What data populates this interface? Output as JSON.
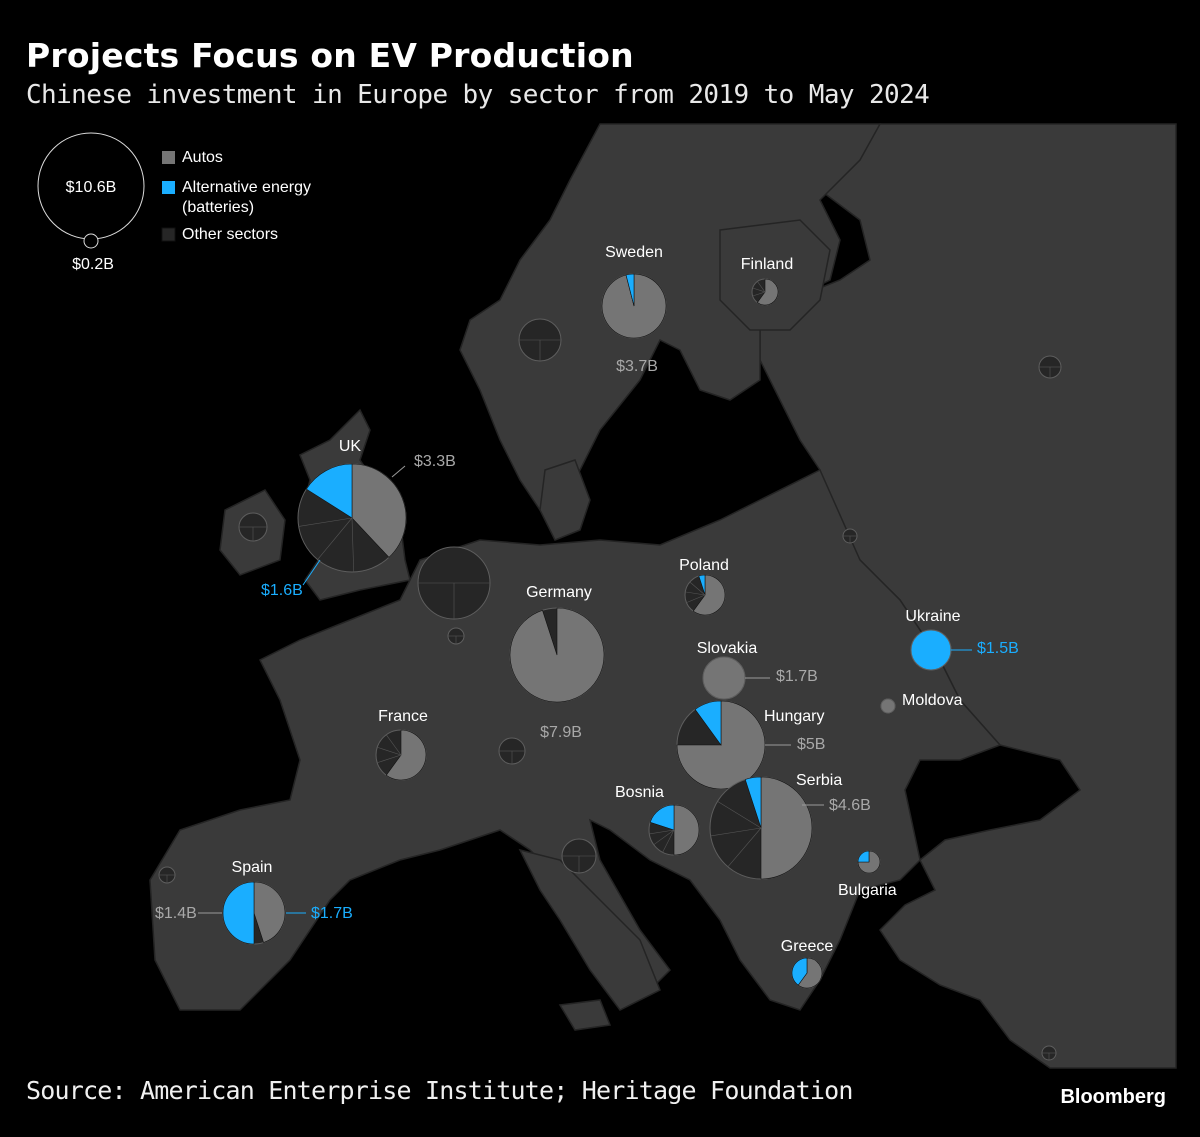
{
  "title": "Projects Focus on EV Production",
  "subtitle": "Chinese investment in Europe by sector from 2019 to May 2024",
  "source": "Source: American Enterprise Institute; Heritage Foundation",
  "brand": "Bloomberg",
  "colors": {
    "autos": "#757575",
    "battery": "#1aaeff",
    "other": "#262626",
    "land": "#3a3a3a",
    "sea": "#000000",
    "border": "#232323"
  },
  "legend": {
    "size_large": "$10.6B",
    "size_small": "$0.2B",
    "items": [
      {
        "label": "Autos",
        "color": "#757575"
      },
      {
        "label": "Alternative energy",
        "label2": "(batteries)",
        "color": "#1aaeff"
      },
      {
        "label": "Other sectors",
        "color": "#262626"
      }
    ]
  },
  "countries": [
    {
      "name": "Sweden",
      "value_label": "$3.7B",
      "shares": [
        0.96,
        0.04,
        0.0
      ]
    },
    {
      "name": "Finland",
      "value_label": "",
      "shares": [
        0.6,
        0.0,
        0.4
      ]
    },
    {
      "name": "UK",
      "value_label": "$3.3B",
      "battery_label": "$1.6B",
      "shares": [
        0.38,
        0.16,
        0.46
      ]
    },
    {
      "name": "Poland",
      "value_label": "",
      "shares": [
        0.6,
        0.05,
        0.35
      ]
    },
    {
      "name": "Germany",
      "value_label": "$7.9B",
      "shares": [
        0.95,
        0.0,
        0.05
      ]
    },
    {
      "name": "Slovakia",
      "value_label": "$1.7B",
      "shares": [
        1.0,
        0.0,
        0.0
      ]
    },
    {
      "name": "Ukraine",
      "value_label": "",
      "battery_label": "$1.5B",
      "shares": [
        0.0,
        1.0,
        0.0
      ]
    },
    {
      "name": "Moldova",
      "value_label": "",
      "shares": [
        1.0,
        0.0,
        0.0
      ]
    },
    {
      "name": "France",
      "value_label": "",
      "shares": [
        0.6,
        0.0,
        0.4
      ]
    },
    {
      "name": "Hungary",
      "value_label": "$5B",
      "shares": [
        0.75,
        0.1,
        0.15
      ]
    },
    {
      "name": "Serbia",
      "value_label": "$4.6B",
      "shares": [
        0.5,
        0.05,
        0.45
      ]
    },
    {
      "name": "Bosnia",
      "value_label": "",
      "shares": [
        0.5,
        0.2,
        0.3
      ]
    },
    {
      "name": "Bulgaria",
      "value_label": "",
      "shares": [
        0.75,
        0.25,
        0.0
      ]
    },
    {
      "name": "Spain",
      "value_label": "$1.4B",
      "battery_label": "$1.7B",
      "shares": [
        0.45,
        0.5,
        0.05
      ]
    },
    {
      "name": "Greece",
      "value_label": "",
      "shares": [
        0.6,
        0.4,
        0.0
      ]
    }
  ],
  "unlabeled": [
    {
      "shares": [
        0.0,
        0.0,
        1.0
      ]
    },
    {
      "shares": [
        0.0,
        0.0,
        1.0
      ]
    },
    {
      "shares": [
        0.0,
        0.0,
        1.0
      ]
    },
    {
      "shares": [
        0.0,
        0.0,
        1.0
      ]
    },
    {
      "shares": [
        0.0,
        0.0,
        1.0
      ]
    },
    {
      "shares": [
        0.0,
        0.0,
        1.0
      ]
    },
    {
      "shares": [
        0.0,
        0.0,
        1.0
      ]
    },
    {
      "shares": [
        0.0,
        0.0,
        1.0
      ]
    },
    {
      "shares": [
        0.0,
        0.0,
        1.0
      ]
    },
    {
      "shares": [
        0.0,
        0.0,
        1.0
      ]
    }
  ]
}
